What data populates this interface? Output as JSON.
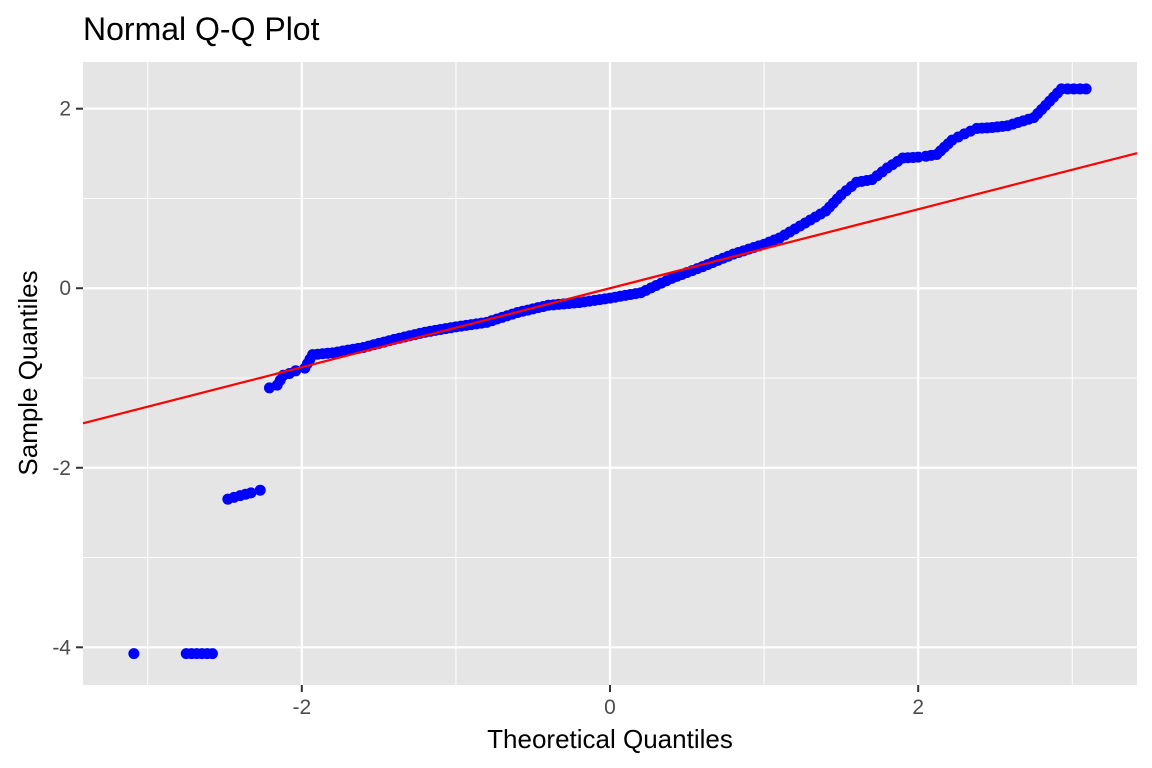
{
  "chart_data": {
    "type": "scatter",
    "title": "Normal Q-Q Plot",
    "xlabel": "Theoretical Quantiles",
    "ylabel": "Sample Quantiles",
    "xlim": [
      -3.42,
      3.42
    ],
    "ylim": [
      -4.42,
      2.52
    ],
    "x_ticks": [
      -2,
      0,
      2
    ],
    "x_tick_labels": [
      "-2",
      "0",
      "2"
    ],
    "y_ticks": [
      -4,
      -2,
      0,
      2
    ],
    "y_tick_labels": [
      "-4",
      "-2",
      "0",
      "2"
    ],
    "grid": true,
    "legend": "none",
    "colors": {
      "panel": "#e5e5e5",
      "grid": "#ffffff",
      "points": "#0000ff",
      "line": "#ff0000",
      "tick": "#4d4d4d"
    },
    "reference_line": {
      "slope": 0.44,
      "intercept": 0.0,
      "color": "#ff0000"
    },
    "series": [
      {
        "points": [
          [
            -3.09,
            -4.07
          ],
          [
            -2.75,
            -4.07
          ],
          [
            -2.58,
            -4.07
          ],
          [
            -2.48,
            -2.35
          ],
          [
            -2.4,
            -2.31
          ],
          [
            -2.33,
            -2.28
          ],
          [
            -2.27,
            -2.25
          ],
          [
            -2.21,
            -1.11
          ],
          [
            -2.16,
            -1.08
          ],
          [
            -2.12,
            -0.97
          ],
          [
            -2.08,
            -0.95
          ],
          [
            -2.04,
            -0.92
          ],
          [
            -1.98,
            -0.89
          ],
          [
            -1.93,
            -0.74
          ],
          [
            -1.8,
            -0.72
          ],
          [
            -1.6,
            -0.66
          ],
          [
            -1.4,
            -0.57
          ],
          [
            -1.2,
            -0.49
          ],
          [
            -1.0,
            -0.43
          ],
          [
            -0.8,
            -0.38
          ],
          [
            -0.6,
            -0.27
          ],
          [
            -0.4,
            -0.19
          ],
          [
            -0.2,
            -0.16
          ],
          [
            0.0,
            -0.11
          ],
          [
            0.2,
            -0.05
          ],
          [
            0.4,
            0.11
          ],
          [
            0.6,
            0.24
          ],
          [
            0.8,
            0.38
          ],
          [
            1.0,
            0.49
          ],
          [
            1.1,
            0.56
          ],
          [
            1.2,
            0.66
          ],
          [
            1.3,
            0.76
          ],
          [
            1.4,
            0.86
          ],
          [
            1.5,
            1.04
          ],
          [
            1.6,
            1.18
          ],
          [
            1.7,
            1.21
          ],
          [
            1.8,
            1.34
          ],
          [
            1.9,
            1.45
          ],
          [
            2.0,
            1.46
          ],
          [
            2.05,
            1.47
          ],
          [
            2.12,
            1.49
          ],
          [
            2.22,
            1.65
          ],
          [
            2.3,
            1.72
          ],
          [
            2.38,
            1.78
          ],
          [
            2.48,
            1.79
          ],
          [
            2.58,
            1.81
          ],
          [
            2.75,
            1.9
          ],
          [
            2.93,
            2.22
          ],
          [
            3.09,
            2.22
          ]
        ]
      }
    ]
  }
}
